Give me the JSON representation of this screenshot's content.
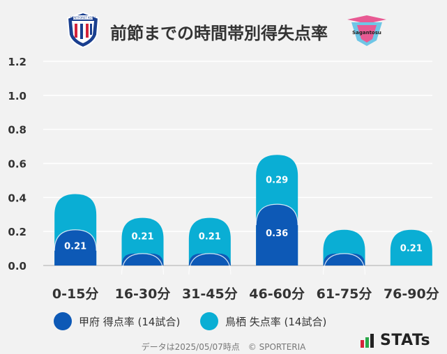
{
  "header": {
    "title": "前節までの時間帯別得失点率",
    "home_crest_text": "VENTFORET KOFU",
    "away_crest_text": "Sagantosu"
  },
  "chart_data": {
    "type": "bar",
    "title": "前節までの時間帯別得失点率",
    "categories": [
      "0-15分",
      "16-30分",
      "31-45分",
      "46-60分",
      "61-75分",
      "76-90分"
    ],
    "series": [
      {
        "name": "甲府 得点率 (14試合)",
        "color": "#0d59b6",
        "values": [
          0.21,
          0.07,
          0.07,
          0.36,
          0.07,
          0.0
        ],
        "labels": [
          "0.21",
          "",
          "",
          "0.36",
          "",
          ""
        ]
      },
      {
        "name": "鳥栖 失点率 (14試合)",
        "color": "#0aaed4",
        "values": [
          0.21,
          0.21,
          0.21,
          0.29,
          0.14,
          0.21
        ],
        "labels": [
          "",
          "0.21",
          "0.21",
          "0.29",
          "",
          "0.21"
        ]
      }
    ],
    "stacked": true,
    "ylim": [
      0,
      1.2
    ],
    "yticks": [
      "0.0",
      "0.2",
      "0.4",
      "0.6",
      "0.8",
      "1.0",
      "1.2"
    ],
    "grid": true,
    "legend_position": "bottom"
  },
  "legend": {
    "home_label": "甲府 得点率 (14試合)",
    "away_label": "鳥栖 失点率 (14試合)"
  },
  "footer": {
    "note": "データは2025/05/07時点　© SPORTERIA",
    "brand": "STATs"
  },
  "colors": {
    "home": "#0d59b6",
    "away": "#0aaed4",
    "background": "#f2f2f2"
  }
}
